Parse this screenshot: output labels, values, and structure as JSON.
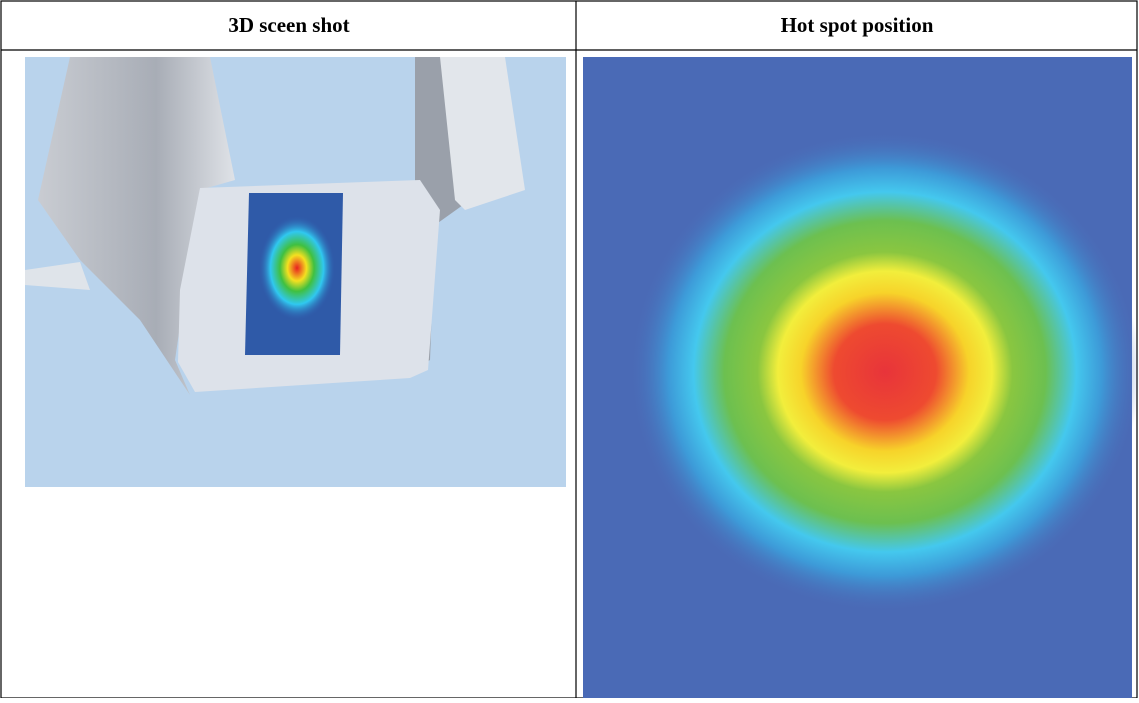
{
  "table": {
    "headers": [
      "3D sceen shot",
      "Hot spot position"
    ]
  }
}
